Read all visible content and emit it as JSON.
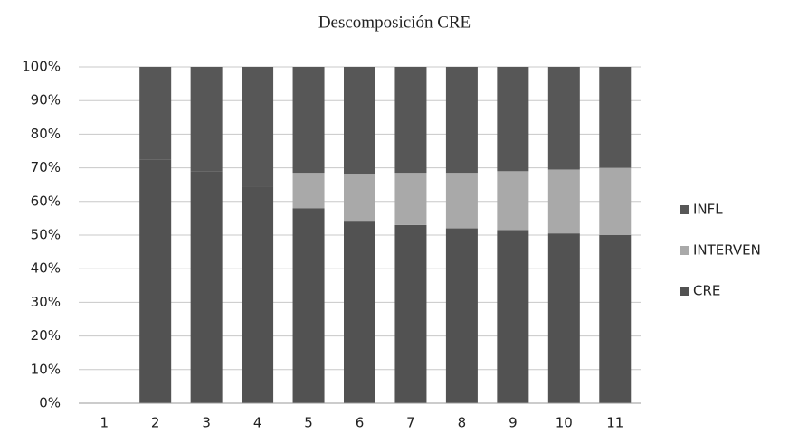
{
  "chart_data": {
    "type": "stacked_bar",
    "title": "Descomposición CRE",
    "categories": [
      "1",
      "2",
      "3",
      "4",
      "5",
      "6",
      "7",
      "8",
      "9",
      "10",
      "11"
    ],
    "series": [
      {
        "name": "CRE",
        "color": "#525252",
        "values": [
          0,
          72.5,
          69,
          64.5,
          58,
          54,
          53,
          52,
          51.5,
          50.5,
          50
        ]
      },
      {
        "name": "INTERVEN",
        "color": "#a9a9a9",
        "values": [
          0,
          0,
          0,
          0,
          10.5,
          14,
          15.5,
          16.5,
          17.5,
          19,
          20
        ]
      },
      {
        "name": "INFL",
        "color": "#575757",
        "values": [
          0,
          27.5,
          31,
          35.5,
          31.5,
          32,
          31.5,
          31.5,
          31,
          30.5,
          30
        ]
      }
    ],
    "ylim": [
      0,
      100
    ],
    "yticks": [
      {
        "value": 0,
        "label": "0%"
      },
      {
        "value": 10,
        "label": "10%"
      },
      {
        "value": 20,
        "label": "20%"
      },
      {
        "value": 30,
        "label": "30%"
      },
      {
        "value": 40,
        "label": "40%"
      },
      {
        "value": 50,
        "label": "50%"
      },
      {
        "value": 60,
        "label": "60%"
      },
      {
        "value": 70,
        "label": "70%"
      },
      {
        "value": 80,
        "label": "80%"
      },
      {
        "value": 90,
        "label": "90%"
      },
      {
        "value": 100,
        "label": "100%"
      }
    ],
    "grid": true,
    "legend": "right"
  }
}
